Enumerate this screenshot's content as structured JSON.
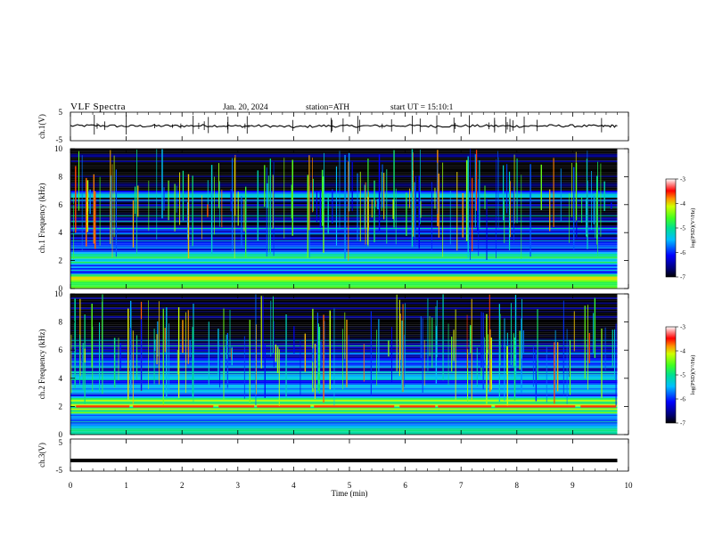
{
  "header": {
    "title": "VLF Spectra",
    "date": "Jan. 20, 2024",
    "station": "station=ATH",
    "start": "start UT = 15:10:1"
  },
  "chart_data": [
    {
      "type": "line",
      "panel": "ch1-waveform",
      "ylabel": "ch.1(V)",
      "ylim": [
        -5,
        5
      ],
      "y_ticks": [
        "5",
        "-5"
      ],
      "x": [
        0,
        0.5,
        1,
        1.5,
        2,
        2.5,
        3,
        3.5,
        4,
        4.5,
        5,
        5.5,
        6,
        6.5,
        7,
        7.5,
        8,
        8.5,
        9,
        9.5,
        9.8
      ],
      "y": [
        0.2,
        0.3,
        0.1,
        0.2,
        0.2,
        0.3,
        0.1,
        0.2,
        -0.2,
        0.2,
        0.1,
        0.2,
        0.3,
        0.1,
        0.2,
        0.2,
        0.1,
        0.2,
        0.2,
        0.1,
        0.2
      ]
    },
    {
      "type": "heatmap",
      "panel": "ch1-spectrogram",
      "ylabel": "ch.1 Frequency (kHz)",
      "ylim": [
        0,
        10
      ],
      "y_ticks": [
        "0",
        "2",
        "4",
        "6",
        "8",
        "10"
      ],
      "colorbar": {
        "label": "log(PSD)(V²/Hz)",
        "range": [
          -7,
          -3
        ],
        "ticks": [
          "-3",
          "-4",
          "-5",
          "-6",
          "-7"
        ]
      },
      "bands_khz": [
        {
          "f0": 0.0,
          "f1": 0.6,
          "level": -5.0
        },
        {
          "f0": 0.6,
          "f1": 1.0,
          "level": -4.2
        },
        {
          "f0": 1.0,
          "f1": 1.7,
          "level": -6.0
        },
        {
          "f0": 1.7,
          "f1": 2.6,
          "level": -5.0
        },
        {
          "f0": 2.6,
          "f1": 4.5,
          "level": -6.3
        },
        {
          "f0": 4.5,
          "f1": 6.5,
          "level": -6.6
        },
        {
          "f0": 6.5,
          "f1": 7.0,
          "level": -5.6
        },
        {
          "f0": 7.0,
          "f1": 10.0,
          "level": -7.0
        }
      ]
    },
    {
      "type": "heatmap",
      "panel": "ch2-spectrogram",
      "ylabel": "ch.2 Frequency (kHz)",
      "ylim": [
        0,
        10
      ],
      "y_ticks": [
        "0",
        "2",
        "4",
        "6",
        "8",
        "10"
      ],
      "colorbar": {
        "label": "log(PSD)(V²/Hz)",
        "range": [
          -7,
          -3
        ],
        "ticks": [
          "-3",
          "-4",
          "-5",
          "-6",
          "-7"
        ]
      },
      "bands_khz": [
        {
          "f0": 0.0,
          "f1": 0.6,
          "level": -5.0
        },
        {
          "f0": 0.6,
          "f1": 1.5,
          "level": -5.6
        },
        {
          "f0": 1.5,
          "f1": 2.6,
          "level": -4.6
        },
        {
          "f0": 2.6,
          "f1": 4.5,
          "level": -5.8
        },
        {
          "f0": 4.5,
          "f1": 6.5,
          "level": -6.3
        },
        {
          "f0": 6.5,
          "f1": 10.0,
          "level": -7.0
        }
      ],
      "hot_line": {
        "f": 2.0,
        "level": -3.6
      }
    },
    {
      "type": "line",
      "panel": "ch3-waveform",
      "ylabel": "ch.3(V)",
      "ylim": [
        -5,
        5
      ],
      "y_ticks": [
        "5",
        "-5"
      ],
      "x": [
        0,
        9.8
      ],
      "y": [
        -1.7,
        -1.7
      ]
    }
  ],
  "x_axis": {
    "label": "Time (min)",
    "range": [
      0,
      10
    ],
    "ticks": [
      "0",
      "1",
      "2",
      "3",
      "4",
      "5",
      "6",
      "7",
      "8",
      "9",
      "10"
    ]
  }
}
